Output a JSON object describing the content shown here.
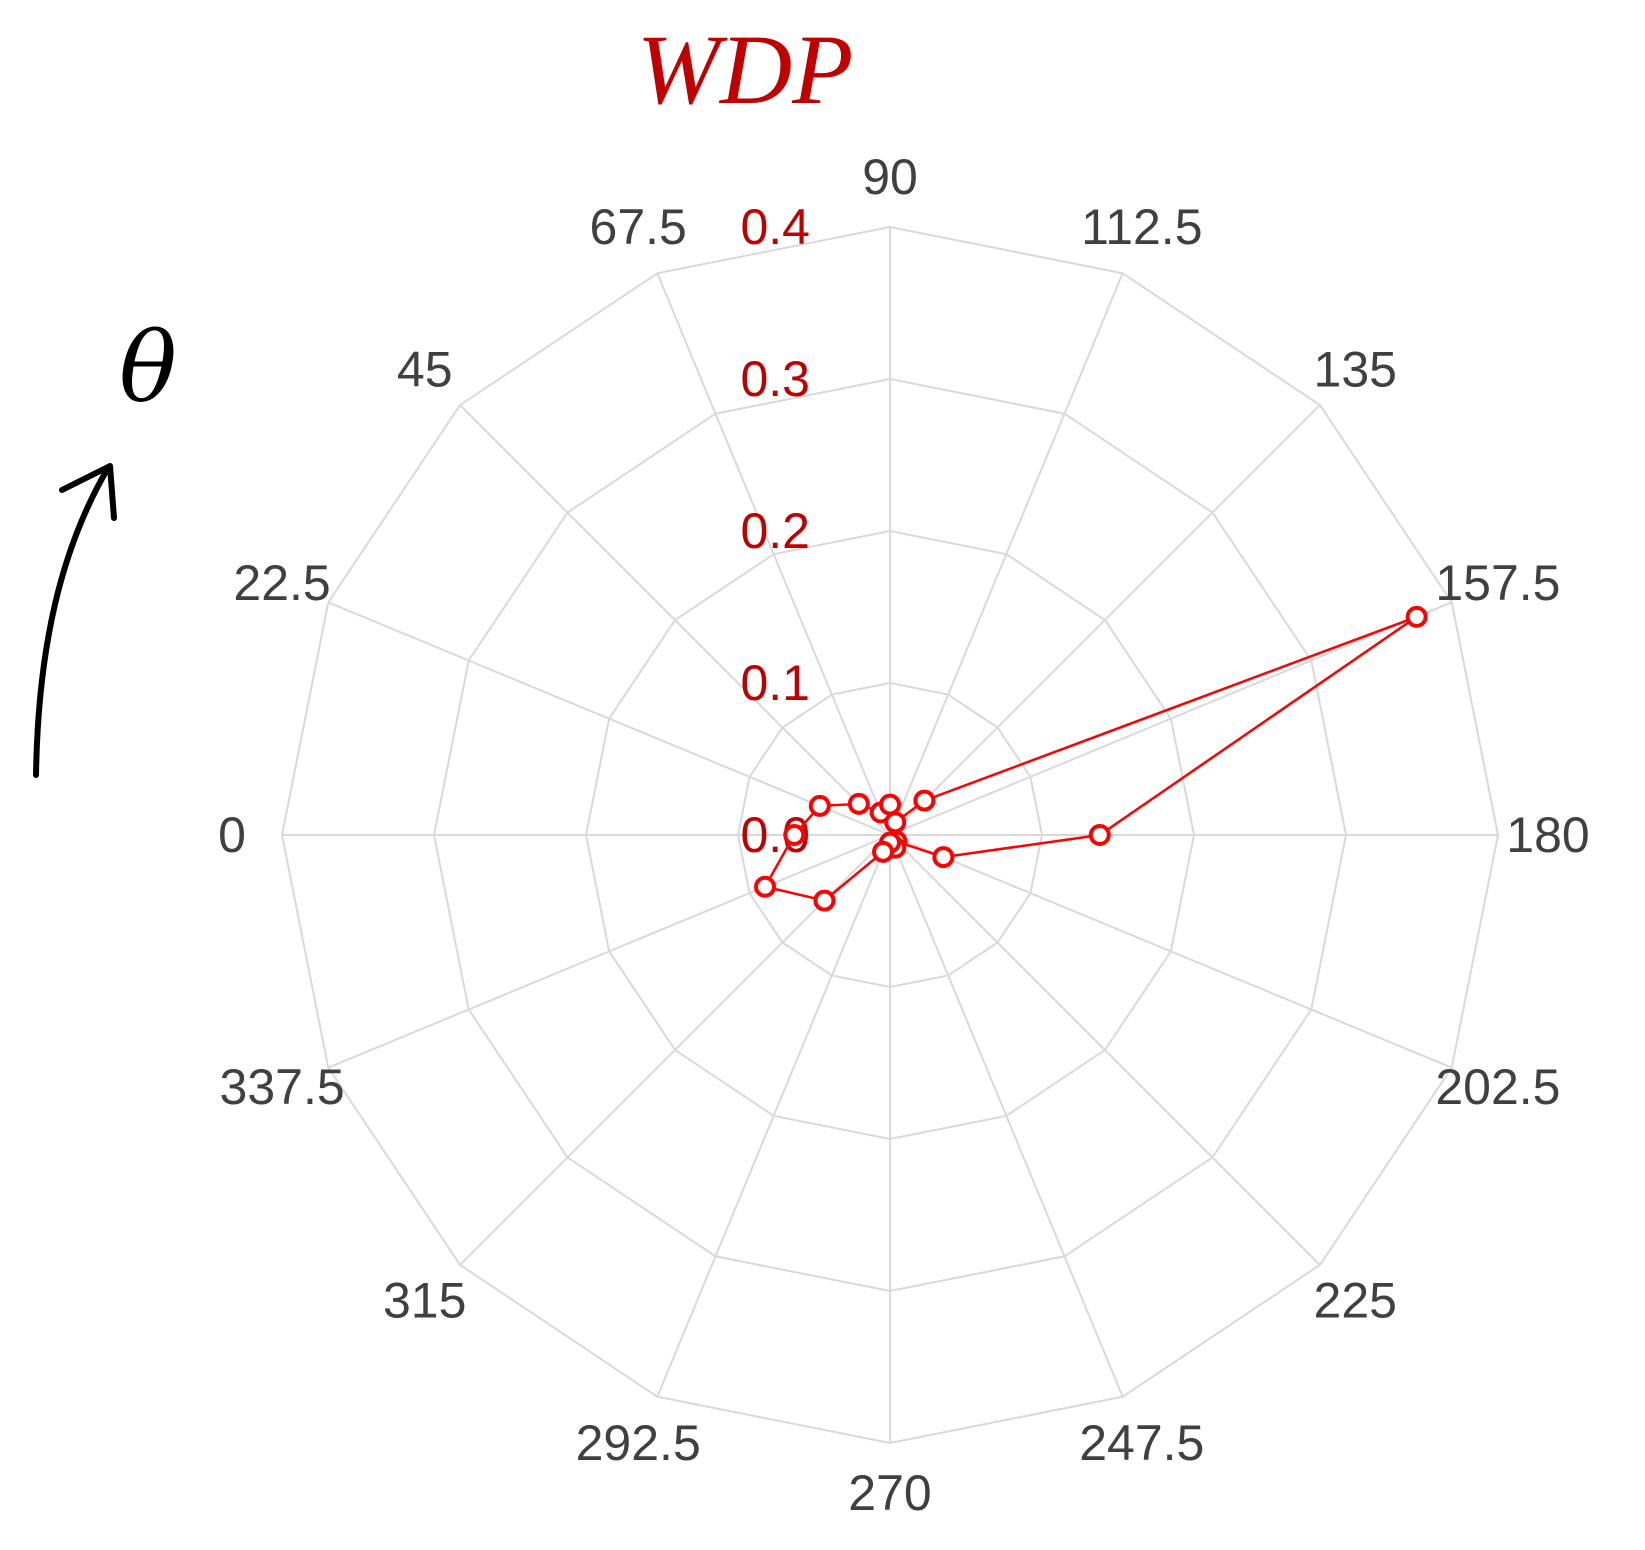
{
  "chart_data": {
    "type": "radar",
    "title": "WDP",
    "angle_symbol": "θ",
    "angle_direction": "counter-clockwise",
    "angles": [
      "0",
      "22.5",
      "45",
      "67.5",
      "90",
      "112.5",
      "135",
      "157.5",
      "180",
      "202.5",
      "225",
      "247.5",
      "270",
      "292.5",
      "315",
      "337.5"
    ],
    "radial_ticks": [
      "0.0",
      "0.1",
      "0.2",
      "0.3",
      "0.4"
    ],
    "rlim": [
      0,
      0.4
    ],
    "grid": true,
    "series": [
      {
        "color": "#ff0000",
        "values": [
          0.063,
          0.05,
          0.029,
          0.016,
          0.02,
          0.009,
          0.032,
          0.375,
          0.138,
          0.038,
          0.006,
          0.009,
          0.005,
          0.012,
          0.061,
          0.089
        ]
      }
    ]
  }
}
